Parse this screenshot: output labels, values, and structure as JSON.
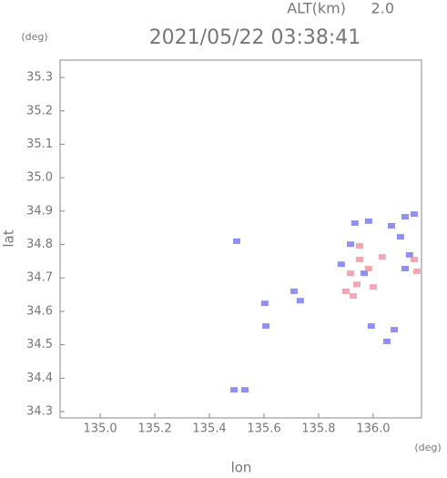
{
  "chart_data": {
    "type": "scatter",
    "title": "2021/05/22 03:38:41",
    "alt_label": "ALT(km)",
    "alt_value": "2.0",
    "xlabel": "lon",
    "ylabel": "lat",
    "xunit": "(deg)",
    "yunit": "(deg)",
    "xlim": [
      134.853,
      136.177
    ],
    "ylim": [
      34.281,
      35.352
    ],
    "xticks": [
      {
        "value": 135,
        "label": "135.0"
      },
      135.2,
      135.4,
      135.6,
      135.8,
      {
        "value": 136,
        "label": "136.0"
      }
    ],
    "yticks": [
      34.3,
      34.4,
      34.5,
      34.6,
      34.7,
      34.8,
      34.9,
      {
        "value": 35,
        "label": "35.0"
      },
      35.1,
      35.2,
      35.3
    ],
    "series": [
      {
        "color": "#6b6bf0",
        "x": [
          135.5,
          135.49,
          135.53,
          135.607,
          135.603,
          135.71,
          135.733,
          135.983,
          135.933,
          135.917,
          136.067,
          136.117,
          136.15,
          136.1,
          136.133,
          136.117,
          135.993,
          136.077,
          136.05,
          135.883,
          135.967
        ],
        "values": [
          34.81,
          34.365,
          34.365,
          34.556,
          34.624,
          34.66,
          34.632,
          34.87,
          34.864,
          34.801,
          34.856,
          34.883,
          34.891,
          34.823,
          34.769,
          34.728,
          34.556,
          34.545,
          34.51,
          34.741,
          34.714
        ]
      },
      {
        "color": "#f08a9a",
        "x": [
          135.917,
          135.94,
          135.95,
          135.983,
          135.9,
          135.927,
          136.0,
          136.15,
          136.16,
          135.95,
          136.033
        ],
        "values": [
          34.714,
          34.681,
          34.755,
          34.728,
          34.66,
          34.646,
          34.673,
          34.755,
          34.72,
          34.796,
          34.763
        ]
      }
    ]
  }
}
